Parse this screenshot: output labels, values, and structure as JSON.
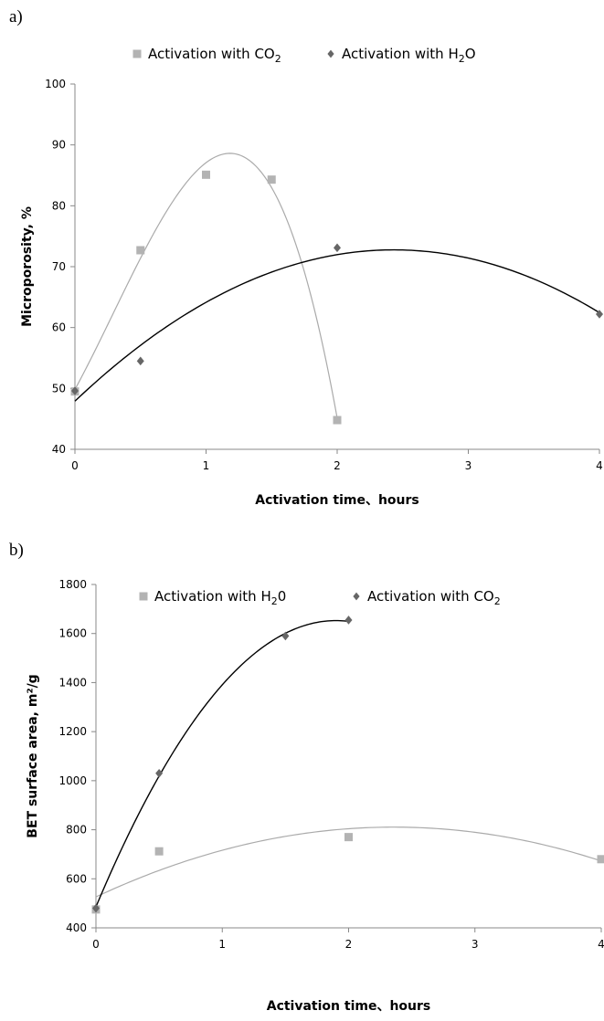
{
  "chart_data": [
    {
      "type": "scatter",
      "panel_label": "a)",
      "xlabel": "Activation time、hours",
      "ylabel": "Microporosity, %",
      "xticks": [
        0,
        1,
        2,
        3,
        4
      ],
      "yticks": [
        40,
        50,
        60,
        70,
        80,
        90,
        100
      ],
      "xlim": [
        0,
        4
      ],
      "ylim": [
        40,
        100
      ],
      "grid": false,
      "legend_position": "top",
      "series": [
        {
          "name": "Activation with CO2",
          "legend_main": "Activation with CO",
          "legend_sub": "2",
          "marker": "square",
          "color": "#b3b3b3",
          "trend_color": "#aaaaaa",
          "trend": "poly3",
          "x": [
            0,
            0.5,
            1,
            1.5,
            2
          ],
          "y": [
            49.5,
            72.7,
            85.1,
            84.3,
            44.8
          ]
        },
        {
          "name": "Activation with H2O",
          "legend_main": "Activation with H",
          "legend_sub": "2",
          "legend_tail": "O",
          "marker": "diamond",
          "color": "#666666",
          "trend_color": "#000000",
          "trend": "poly2",
          "x": [
            0,
            0.5,
            2,
            4
          ],
          "y": [
            49.6,
            54.5,
            73.1,
            62.2
          ]
        }
      ]
    },
    {
      "type": "scatter",
      "panel_label": "b)",
      "xlabel": "Activation time、hours",
      "ylabel": "BET surface area, m²/g",
      "xticks": [
        0,
        1,
        2,
        3,
        4
      ],
      "yticks": [
        400,
        600,
        800,
        1000,
        1200,
        1400,
        1600,
        1800
      ],
      "xlim": [
        0,
        4
      ],
      "ylim": [
        400,
        1800
      ],
      "grid": false,
      "legend_position": "top",
      "series": [
        {
          "name": "Activation with H20",
          "legend_main": "Activation with H",
          "legend_sub": "2",
          "legend_tail": "0",
          "marker": "square",
          "color": "#b3b3b3",
          "trend_color": "#aaaaaa",
          "trend": "poly2",
          "x": [
            0,
            0.5,
            2,
            4
          ],
          "y": [
            475,
            712,
            770,
            680
          ]
        },
        {
          "name": "Activation with CO2",
          "legend_main": "Activation with CO",
          "legend_sub": "2",
          "marker": "diamond",
          "color": "#666666",
          "trend_color": "#000000",
          "trend": "poly2",
          "x": [
            0,
            0.5,
            1.5,
            2
          ],
          "y": [
            480,
            1030,
            1590,
            1655
          ]
        }
      ]
    }
  ]
}
